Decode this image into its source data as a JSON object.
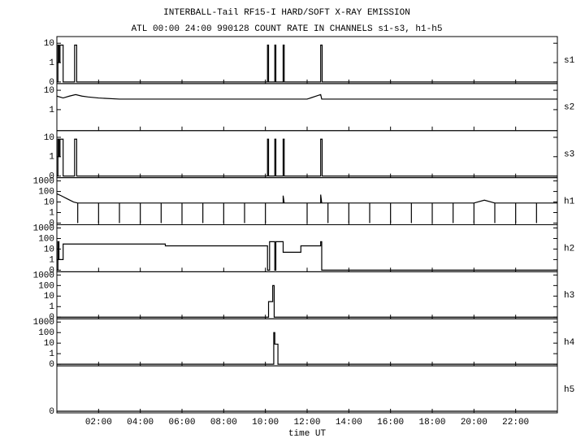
{
  "title": "INTERBALL-Tail RF15-I HARD/SOFT X-RAY EMISSION",
  "subtitle": "ATL 00:00 24:00 990128  COUNT RATE IN CHANNELS s1-s3, h1-h5",
  "chart_data": [
    {
      "type": "line",
      "label": "s1",
      "yscale": "symlog",
      "xlim": [
        0,
        24
      ],
      "ylim": [
        0,
        15
      ],
      "yticks": [
        0,
        1,
        10
      ],
      "series": [
        {
          "color": "#000000",
          "x": [
            0,
            0.05,
            0.05,
            0.1,
            0.1,
            0.15,
            0.15,
            0.3,
            0.3,
            0.85,
            0.85,
            0.95,
            0.95,
            10.1,
            10.1,
            10.15,
            10.15,
            10.45,
            10.45,
            10.5,
            10.5,
            10.85,
            10.85,
            10.9,
            10.9,
            12.65,
            12.65,
            12.72,
            12.72,
            24
          ],
          "values": [
            0,
            0,
            8,
            8,
            1,
            1,
            8,
            8,
            0,
            0,
            8,
            8,
            0,
            0,
            8,
            8,
            0,
            0,
            8,
            8,
            0,
            0,
            8,
            8,
            0,
            0,
            8,
            8,
            0,
            0
          ]
        }
      ]
    },
    {
      "type": "line",
      "label": "s2",
      "yscale": "symlog",
      "xlim": [
        0,
        24
      ],
      "ylim": [
        0,
        15
      ],
      "yticks": [
        1,
        10
      ],
      "series": [
        {
          "color": "#000000",
          "x": [
            0,
            0.3,
            0.6,
            0.9,
            1.2,
            1.5,
            2,
            3,
            4,
            5,
            6,
            7,
            8,
            9,
            10,
            11,
            12,
            12.65,
            12.7,
            13,
            14,
            15,
            16,
            17,
            18,
            19,
            20,
            21,
            22,
            23,
            24
          ],
          "values": [
            5,
            4,
            5,
            6,
            5,
            4.5,
            4,
            3.5,
            3.5,
            3.5,
            3.5,
            3.5,
            3.5,
            3.5,
            3.5,
            3.5,
            3.5,
            6,
            3.5,
            3.5,
            3.5,
            3.5,
            3.5,
            3.5,
            3.5,
            3.5,
            3.5,
            3.5,
            3.5,
            3.5,
            3.5
          ]
        }
      ]
    },
    {
      "type": "line",
      "label": "s3",
      "yscale": "symlog",
      "xlim": [
        0,
        24
      ],
      "ylim": [
        0,
        15
      ],
      "yticks": [
        0,
        1,
        10
      ],
      "series": [
        {
          "color": "#000000",
          "x": [
            0,
            0.05,
            0.05,
            0.1,
            0.1,
            0.15,
            0.15,
            0.3,
            0.3,
            0.85,
            0.85,
            0.95,
            0.95,
            10.1,
            10.1,
            10.15,
            10.15,
            10.45,
            10.45,
            10.5,
            10.5,
            10.85,
            10.85,
            10.9,
            10.9,
            12.65,
            12.65,
            12.72,
            12.72,
            24
          ],
          "values": [
            0,
            0,
            8,
            8,
            1,
            1,
            8,
            8,
            0,
            0,
            8,
            8,
            0,
            0,
            8,
            8,
            0,
            0,
            8,
            8,
            0,
            0,
            8,
            8,
            0,
            0,
            8,
            8,
            0,
            0
          ]
        }
      ]
    },
    {
      "type": "line",
      "label": "h1",
      "yscale": "symlog",
      "xlim": [
        0,
        24
      ],
      "ylim": [
        0,
        1000
      ],
      "yticks": [
        0,
        1,
        10,
        100,
        1000
      ],
      "series": [
        {
          "color": "#000000",
          "x": [
            0,
            0.2,
            0.5,
            0.8,
            1,
            1,
            1,
            2,
            2,
            2,
            3,
            3,
            3,
            4,
            4,
            4,
            5,
            5,
            5,
            6,
            6,
            6,
            7,
            7,
            7,
            8,
            8,
            8,
            9,
            9,
            9,
            10,
            10,
            10,
            10.85,
            10.85,
            10.9,
            12,
            12,
            12,
            12.65,
            12.65,
            12.7,
            13,
            13,
            13,
            14,
            14,
            14,
            15,
            15,
            15,
            16,
            16,
            16,
            17,
            17,
            17,
            18,
            18,
            18,
            19,
            19,
            19,
            20,
            20,
            20,
            20.5,
            21,
            21,
            21,
            22,
            22,
            22,
            23,
            23,
            23,
            24
          ],
          "values": [
            60,
            40,
            20,
            10,
            8,
            0,
            8,
            8,
            0,
            8,
            8,
            0,
            8,
            8,
            0,
            8,
            8,
            0,
            8,
            8,
            0,
            8,
            8,
            0,
            8,
            8,
            0,
            8,
            8,
            0,
            8,
            8,
            0,
            8,
            8,
            40,
            8,
            8,
            0,
            8,
            8,
            50,
            8,
            8,
            0,
            8,
            8,
            0,
            8,
            8,
            0,
            8,
            8,
            0,
            8,
            8,
            0,
            8,
            8,
            0,
            8,
            8,
            0,
            8,
            8,
            0,
            8,
            15,
            8,
            0,
            8,
            8,
            0,
            8,
            8,
            0,
            8,
            8
          ]
        }
      ]
    },
    {
      "type": "line",
      "label": "h2",
      "yscale": "symlog",
      "xlim": [
        0,
        24
      ],
      "ylim": [
        0,
        1000
      ],
      "yticks": [
        0,
        1,
        10,
        100,
        1000
      ],
      "series": [
        {
          "color": "#000000",
          "x": [
            0,
            0.05,
            0.05,
            0.1,
            0.1,
            0.3,
            0.3,
            5.2,
            5.2,
            10.1,
            10.1,
            10.2,
            10.2,
            10.45,
            10.45,
            10.5,
            10.5,
            10.85,
            10.85,
            11.7,
            11.7,
            12.65,
            12.65,
            12.7,
            12.7,
            24
          ],
          "values": [
            0,
            0,
            50,
            50,
            1,
            1,
            30,
            30,
            20,
            20,
            0,
            0,
            50,
            50,
            0,
            0,
            50,
            50,
            5,
            5,
            20,
            20,
            50,
            50,
            0,
            0
          ]
        }
      ]
    },
    {
      "type": "line",
      "label": "h3",
      "yscale": "symlog",
      "xlim": [
        0,
        24
      ],
      "ylim": [
        0,
        1000
      ],
      "yticks": [
        0,
        1,
        10,
        100,
        1000
      ],
      "series": [
        {
          "color": "#000000",
          "x": [
            0,
            10.15,
            10.15,
            10.35,
            10.35,
            10.42,
            10.42,
            24
          ],
          "values": [
            0,
            0,
            3,
            3,
            100,
            100,
            0,
            0
          ]
        }
      ]
    },
    {
      "type": "line",
      "label": "h4",
      "yscale": "symlog",
      "xlim": [
        0,
        24
      ],
      "ylim": [
        0,
        1000
      ],
      "yticks": [
        0,
        1,
        10,
        100,
        1000
      ],
      "series": [
        {
          "color": "#000000",
          "x": [
            0,
            10.4,
            10.4,
            10.45,
            10.45,
            10.6,
            10.6,
            24
          ],
          "values": [
            0,
            0,
            100,
            100,
            8,
            8,
            0,
            0
          ]
        }
      ]
    },
    {
      "type": "line",
      "label": "h5",
      "yscale": "symlog",
      "xlim": [
        0,
        24
      ],
      "ylim": [
        0,
        1
      ],
      "yticks": [
        0
      ],
      "xlabel": "time UT",
      "xticks": [
        {
          "value": 2,
          "label": "02:00"
        },
        {
          "value": 4,
          "label": "04:00"
        },
        {
          "value": 6,
          "label": "06:00"
        },
        {
          "value": 8,
          "label": "08:00"
        },
        {
          "value": 10,
          "label": "10:00"
        },
        {
          "value": 12,
          "label": "12:00"
        },
        {
          "value": 14,
          "label": "14:00"
        },
        {
          "value": 16,
          "label": "16:00"
        },
        {
          "value": 18,
          "label": "18:00"
        },
        {
          "value": 20,
          "label": "20:00"
        },
        {
          "value": 22,
          "label": "22:00"
        }
      ],
      "series": [
        {
          "color": "#000000",
          "x": [
            0,
            24
          ],
          "values": [
            0,
            0
          ]
        }
      ]
    }
  ]
}
